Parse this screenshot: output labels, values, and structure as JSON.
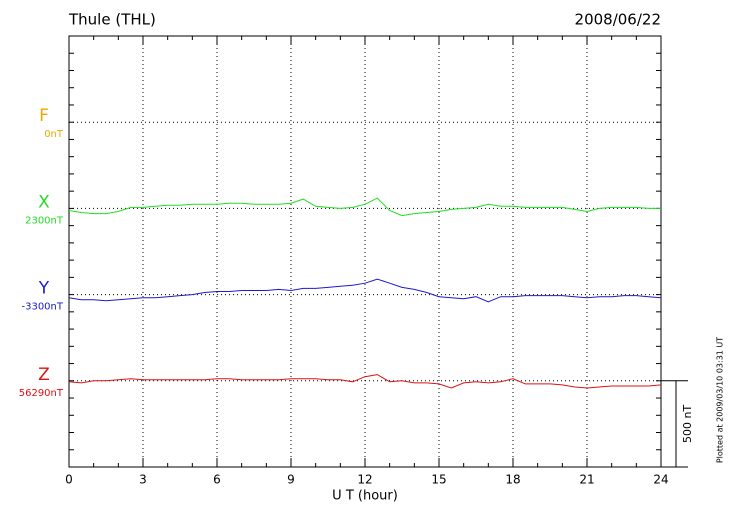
{
  "chart_data": {
    "type": "line",
    "title": "Thule (THL)",
    "date": "2008/06/22",
    "x_label": "U T (hour)",
    "xlim": [
      0,
      24
    ],
    "xticks": [
      0,
      3,
      6,
      9,
      12,
      15,
      18,
      21,
      24
    ],
    "grid": true,
    "x": [
      0,
      0.5,
      1,
      1.5,
      2,
      2.5,
      3,
      3.5,
      4,
      4.5,
      5,
      5.5,
      6,
      6.5,
      7,
      7.5,
      8,
      8.5,
      9,
      9.5,
      10,
      10.5,
      11,
      11.5,
      12,
      12.5,
      13,
      13.5,
      14,
      14.5,
      15,
      15.5,
      16,
      16.5,
      17,
      17.5,
      18,
      18.5,
      19,
      19.5,
      20,
      20.5,
      21,
      21.5,
      22,
      22.5,
      23,
      23.5,
      24
    ],
    "series": [
      {
        "name": "F",
        "baseline_label": "0nT",
        "color": "#f0a800"
      },
      {
        "name": "X",
        "baseline_label": "2300nT",
        "color": "#22dd22",
        "values": [
          -12,
          -24,
          -30,
          -30,
          -18,
          6,
          6,
          12,
          18,
          18,
          24,
          24,
          24,
          30,
          30,
          24,
          24,
          24,
          30,
          54,
          12,
          6,
          0,
          6,
          24,
          60,
          -12,
          -42,
          -30,
          -24,
          -18,
          -6,
          0,
          6,
          24,
          12,
          12,
          6,
          6,
          6,
          6,
          -6,
          -18,
          0,
          6,
          6,
          6,
          0,
          0
        ]
      },
      {
        "name": "Y",
        "baseline_label": "-3300nT",
        "color": "#1a1acc",
        "values": [
          -18,
          -30,
          -30,
          -36,
          -30,
          -24,
          -18,
          -18,
          -12,
          -6,
          0,
          12,
          18,
          18,
          24,
          24,
          24,
          30,
          24,
          36,
          36,
          42,
          48,
          54,
          66,
          90,
          66,
          42,
          30,
          12,
          -12,
          -18,
          -24,
          -12,
          -42,
          -12,
          -12,
          -6,
          -6,
          -6,
          -6,
          -12,
          -18,
          -12,
          -12,
          -6,
          -6,
          -12,
          -18
        ]
      },
      {
        "name": "Z",
        "baseline_label": "56290nT",
        "color": "#dd1111",
        "values": [
          -6,
          -12,
          0,
          0,
          6,
          12,
          6,
          6,
          6,
          6,
          6,
          6,
          12,
          12,
          6,
          6,
          6,
          6,
          12,
          12,
          12,
          6,
          6,
          -6,
          24,
          36,
          -6,
          0,
          -12,
          -12,
          -18,
          -42,
          -12,
          -6,
          -12,
          -6,
          12,
          -18,
          -18,
          -18,
          -24,
          -36,
          -42,
          -36,
          -30,
          -30,
          -30,
          -30,
          -24
        ]
      }
    ],
    "scale_bar": {
      "value": 500,
      "label": "500 nT"
    },
    "footnote": "Plotted at 2009/03/10 03:31 UT"
  }
}
